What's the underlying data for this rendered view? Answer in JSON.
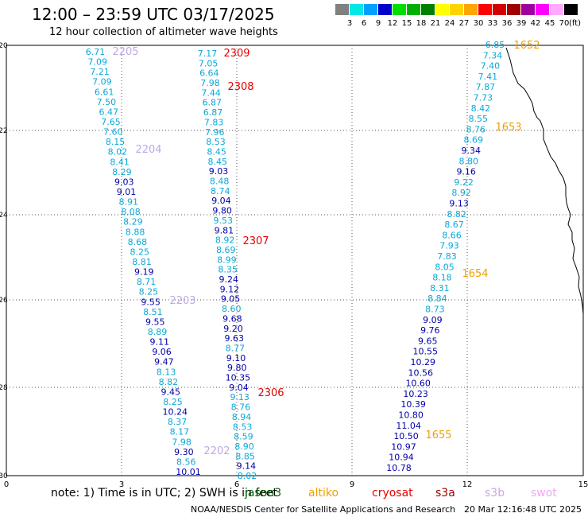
{
  "header": {
    "title": "12:00 – 23:59 UTC 03/17/2025",
    "subtitle": "12 hour collection of altimeter wave heights"
  },
  "legend": {
    "unit": "(ft)",
    "levels": [
      "3",
      "6",
      "9",
      "12",
      "15",
      "18",
      "21",
      "24",
      "27",
      "30",
      "33",
      "36",
      "39",
      "42",
      "45",
      "70"
    ],
    "colors": [
      "#808080",
      "#00e8e8",
      "#00a0ff",
      "#0000cd",
      "#00dd00",
      "#00b000",
      "#008000",
      "#ffff00",
      "#ffd400",
      "#ffa500",
      "#ff0000",
      "#d20000",
      "#a00000",
      "#a000a0",
      "#ff00ff",
      "#ffaaff",
      "#000000"
    ]
  },
  "colors": {
    "cyan": "#0aa8d8",
    "blue": "#0000a8",
    "lilac": "#c0a8e8",
    "red": "#e80000",
    "orange": "#f0a000"
  },
  "axes": {
    "y": [
      "20",
      "22",
      "24",
      "26",
      "28",
      "30"
    ],
    "x": [
      "0",
      "3",
      "6",
      "9",
      "12",
      "15"
    ]
  },
  "tracks": [
    {
      "values": [
        "6.71",
        "7.09",
        "7.21",
        "7.09",
        "6.61",
        "7.50",
        "6.47",
        "7.65",
        "7.60",
        "8.15",
        "8.02",
        "8.41",
        "8.29",
        "9.03",
        "9.01",
        "8.91",
        "8.08",
        "8.29",
        "8.88",
        "8.68",
        "8.25",
        "8.81",
        "9.19",
        "8.71",
        "8.25",
        "9.55",
        "8.51",
        "9.55",
        "8.89",
        "9.11",
        "9.06",
        "9.47",
        "8.13",
        "8.82",
        "9.45",
        "8.25",
        "10.24",
        "8.37",
        "8.17",
        "7.98",
        "9.30",
        "8.56",
        "10.01"
      ],
      "colors": [
        "c",
        "c",
        "c",
        "c",
        "c",
        "c",
        "c",
        "c",
        "c",
        "c",
        "c",
        "c",
        "c",
        "b",
        "b",
        "c",
        "c",
        "c",
        "c",
        "c",
        "c",
        "c",
        "b",
        "c",
        "c",
        "b",
        "c",
        "b",
        "c",
        "b",
        "b",
        "b",
        "c",
        "c",
        "b",
        "c",
        "b",
        "c",
        "c",
        "c",
        "b",
        "c",
        "b"
      ]
    },
    {
      "values": [
        "7.17",
        "7.05",
        "6.64",
        "7.98",
        "7.44",
        "6.87",
        "6.87",
        "7.83",
        "7.96",
        "8.53",
        "8.45",
        "8.45",
        "9.03",
        "8.48",
        "8.74",
        "9.04",
        "9.80",
        "9.53",
        "9.81",
        "8.92",
        "8.69",
        "8.99",
        "8.35",
        "9.24",
        "9.12",
        "9.05",
        "8.60",
        "9.68",
        "9.20",
        "9.63",
        "8.77",
        "9.10",
        "9.80",
        "10.35",
        "9.04",
        "9.13",
        "8.76",
        "8.94",
        "8.53",
        "8.59",
        "8.90",
        "8.85",
        "9.14",
        "8.02"
      ],
      "colors": [
        "c",
        "c",
        "c",
        "c",
        "c",
        "c",
        "c",
        "c",
        "c",
        "c",
        "c",
        "c",
        "b",
        "c",
        "c",
        "b",
        "b",
        "c",
        "b",
        "c",
        "c",
        "c",
        "c",
        "b",
        "b",
        "b",
        "c",
        "b",
        "b",
        "b",
        "c",
        "b",
        "b",
        "b",
        "b",
        "c",
        "c",
        "c",
        "c",
        "c",
        "c",
        "c",
        "b",
        "c"
      ]
    },
    {
      "values": [
        "6.85",
        "7.34",
        "7.40",
        "7.41",
        "7.87",
        "7.73",
        "8.42",
        "8.55",
        "8.76",
        "8.69",
        "9.34",
        "8.80",
        "9.16",
        "9.22",
        "8.92",
        "9.13",
        "8.82",
        "8.67",
        "8.66",
        "7.93",
        "7.83",
        "8.05",
        "8.18",
        "8.31",
        "8.84",
        "8.73",
        "9.09",
        "9.76",
        "9.65",
        "10.55",
        "10.29",
        "10.56",
        "10.60",
        "10.23",
        "10.39",
        "10.80",
        "11.04",
        "10.50",
        "10.97",
        "10.94",
        "10.78"
      ],
      "colors": [
        "c",
        "c",
        "c",
        "c",
        "c",
        "c",
        "c",
        "c",
        "c",
        "c",
        "b",
        "c",
        "b",
        "c",
        "c",
        "b",
        "c",
        "c",
        "c",
        "c",
        "c",
        "c",
        "c",
        "c",
        "c",
        "c",
        "b",
        "b",
        "b",
        "b",
        "b",
        "b",
        "b",
        "b",
        "b",
        "b",
        "b",
        "b",
        "b",
        "b",
        "b"
      ]
    }
  ],
  "pass_labels": [
    "2205",
    "2204",
    "2203",
    "2202",
    "2309",
    "2308",
    "2307",
    "2306",
    "1652",
    "1653",
    "1654",
    "1655"
  ],
  "footer": {
    "note": "note:  1) Time is in UTC; 2) SWH is in feet",
    "satellites": [
      {
        "name": "jason3",
        "color": "#006400"
      },
      {
        "name": "altiko",
        "color": "#f0a000"
      },
      {
        "name": "cryosat",
        "color": "#e80000"
      },
      {
        "name": "s3a",
        "color": "#a00000"
      },
      {
        "name": "s3b",
        "color": "#c8a8e0"
      },
      {
        "name": "swot",
        "color": "#f0a8f0"
      }
    ],
    "credit": "NOAA/NESDIS Center for Satellite Applications and Research",
    "timestamp": "20 Mar 12:16:48 UTC 2025"
  }
}
